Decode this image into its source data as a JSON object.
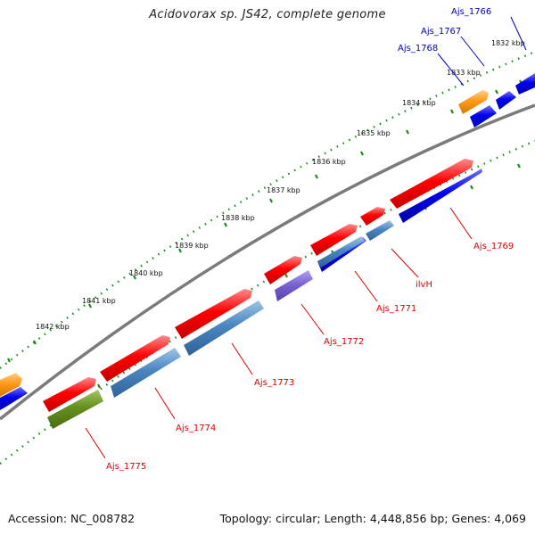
{
  "title": "Acidovorax sp. JS42, complete genome",
  "footer": {
    "accession": "Accession: NC_008782",
    "summary": "Topology: circular; Length: 4,448,856 bp; Genes: 4,069"
  },
  "colors": {
    "forward_gene": "#ff0000",
    "reverse_gene": "#0000ee",
    "reverse_steel": "#4a86c2",
    "purple_gene": "#7b62d4",
    "olive_gene": "#668f1f",
    "orange_gene": "#ff9a1a",
    "backbone": "#7b7b7b",
    "tick_dots": "#1d8a1d",
    "label_forward": "#dd0000",
    "label_reverse": "#0000cc"
  },
  "kbp_ticks": [
    "1832 kbp",
    "1833 kbp",
    "1834 kbp",
    "1835 kbp",
    "1836 kbp",
    "1837 kbp",
    "1838 kbp",
    "1839 kbp",
    "1840 kbp",
    "1841 kbp",
    "1842 kbp"
  ],
  "gene_labels": [
    {
      "name": "Ajs_1766",
      "strand": "reverse"
    },
    {
      "name": "Ajs_1767",
      "strand": "reverse"
    },
    {
      "name": "Ajs_1768",
      "strand": "reverse"
    },
    {
      "name": "Ajs_1769",
      "strand": "forward"
    },
    {
      "name": "ilvH",
      "strand": "forward"
    },
    {
      "name": "Ajs_1771",
      "strand": "forward"
    },
    {
      "name": "Ajs_1772",
      "strand": "forward"
    },
    {
      "name": "Ajs_1773",
      "strand": "forward"
    },
    {
      "name": "Ajs_1774",
      "strand": "forward"
    },
    {
      "name": "Ajs_1775",
      "strand": "forward"
    }
  ]
}
